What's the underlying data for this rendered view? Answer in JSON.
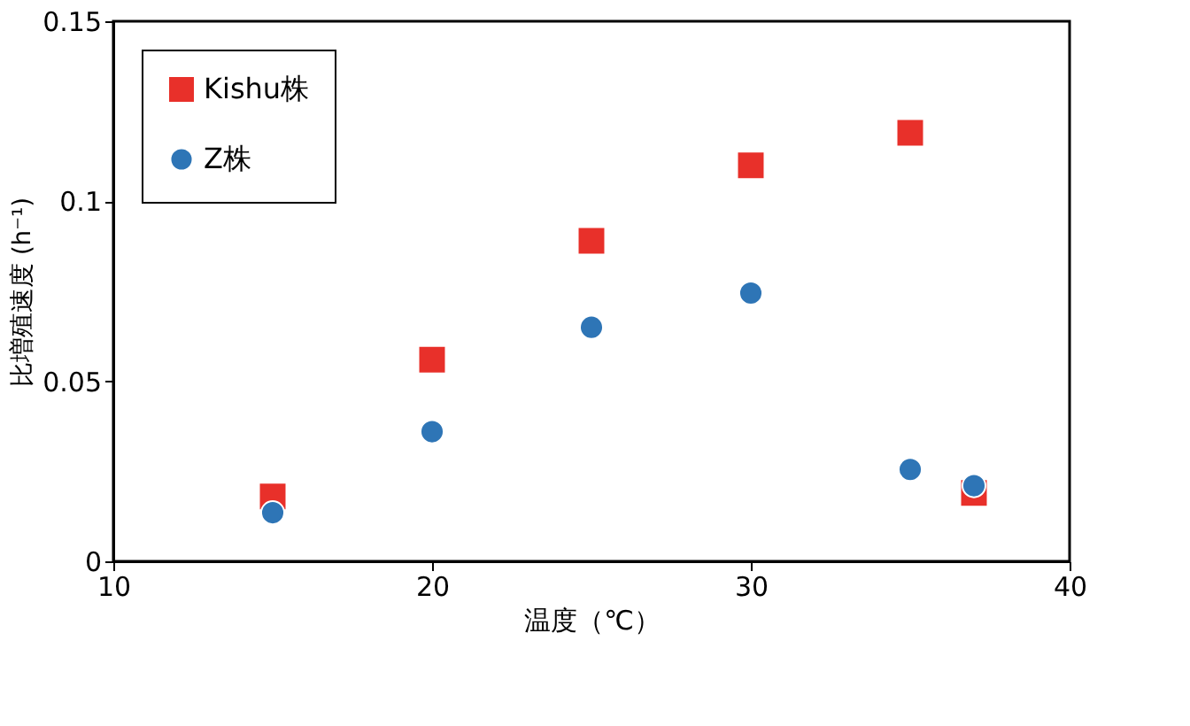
{
  "chart_data": {
    "type": "scatter",
    "xlabel": "温度（℃）",
    "ylabel": "比増殖速度 (h⁻¹)",
    "xlim": [
      10,
      40
    ],
    "xticks": [
      10,
      20,
      30,
      40
    ],
    "ylim": [
      0,
      0.15
    ],
    "yticks": [
      0,
      0.05,
      0.1,
      0.15
    ],
    "grid": false,
    "legend": "top left",
    "series": [
      {
        "name": "Kishu株",
        "color": "#e8302a",
        "marker": "square",
        "x": [
          15,
          20,
          25,
          30,
          35,
          37
        ],
        "values": [
          0.018,
          0.056,
          0.089,
          0.11,
          0.119,
          0.019
        ]
      },
      {
        "name": "Z株",
        "color": "#2e75b6",
        "marker": "circle",
        "x": [
          15,
          20,
          25,
          30,
          35,
          37
        ],
        "values": [
          0.0135,
          0.036,
          0.065,
          0.0745,
          0.0255,
          0.021
        ]
      }
    ]
  }
}
